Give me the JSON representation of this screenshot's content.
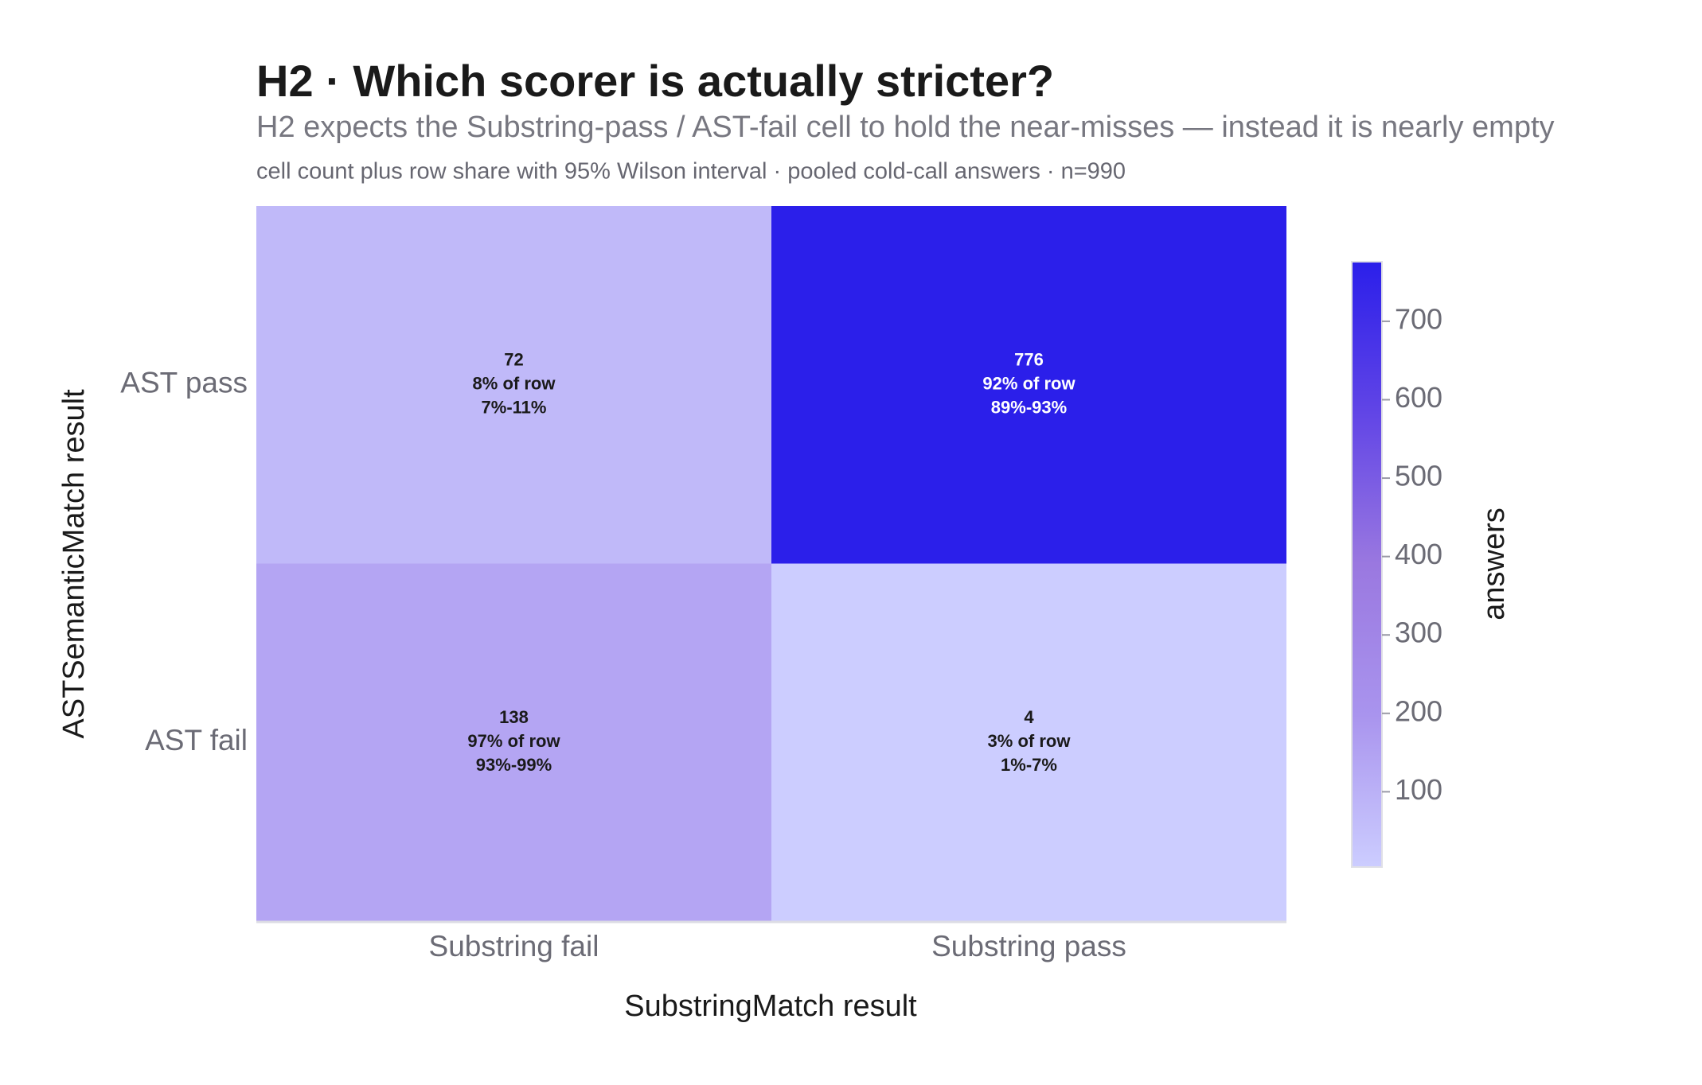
{
  "chart_data": {
    "type": "heatmap",
    "title": "H2 · Which scorer is actually stricter?",
    "subtitle": "H2 expects the Substring-pass / AST-fail cell to hold the near-misses — instead it is nearly empty",
    "note": "cell count plus row share with 95% Wilson interval · pooled cold-call answers · n=990",
    "x_label": "SubstringMatch result",
    "y_label": "ASTSemanticMatch result",
    "x_categories": [
      "Substring fail",
      "Substring pass"
    ],
    "y_categories": [
      "AST pass",
      "AST fail"
    ],
    "values": [
      [
        72,
        776
      ],
      [
        138,
        4
      ]
    ],
    "row_share_labels": [
      [
        "8% of row",
        "92% of row"
      ],
      [
        "97% of row",
        "3% of row"
      ]
    ],
    "interval_labels": [
      [
        "7%-11%",
        "89%-93%"
      ],
      [
        "93%-99%",
        "1%-7%"
      ]
    ],
    "colorbar_title": "answers",
    "zlim": [
      4,
      776
    ],
    "zticks": [
      100,
      200,
      300,
      400,
      500,
      600,
      700
    ],
    "colorscale": [
      [
        0,
        "#cccdff"
      ],
      [
        0.25,
        "#a994ee"
      ],
      [
        0.5,
        "#9a78e0"
      ],
      [
        0.75,
        "#6145e6"
      ],
      [
        1,
        "#2b1fea"
      ]
    ]
  }
}
